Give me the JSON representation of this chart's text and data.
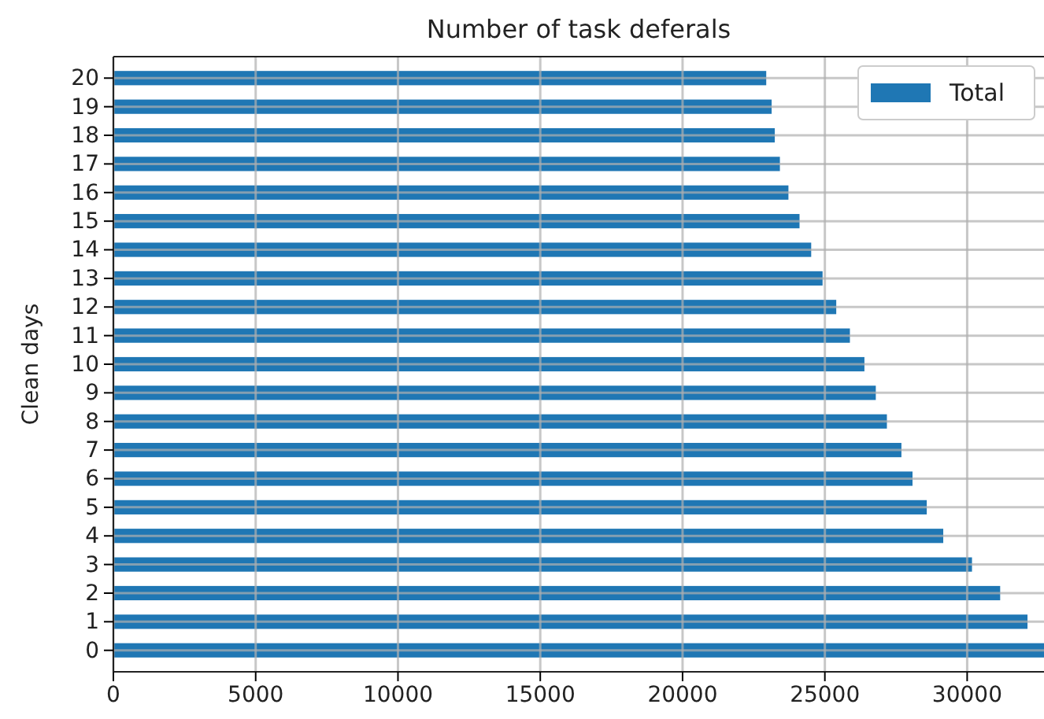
{
  "chart_data": {
    "type": "bar",
    "orientation": "horizontal",
    "title": "Number of task deferals",
    "ylabel": "Clean days",
    "categories": [
      "20",
      "19",
      "18",
      "17",
      "16",
      "15",
      "14",
      "13",
      "12",
      "11",
      "10",
      "9",
      "8",
      "7",
      "6",
      "5",
      "4",
      "3",
      "2",
      "1",
      "0"
    ],
    "series": [
      {
        "name": "Total",
        "color": "#1f77b4",
        "values": [
          22940,
          23130,
          23240,
          23420,
          23720,
          24110,
          24520,
          24920,
          25400,
          25880,
          26390,
          26790,
          27180,
          27690,
          28080,
          28580,
          29160,
          30170,
          31160,
          32120,
          32700
        ]
      }
    ],
    "xlim": [
      0,
      32700
    ],
    "xticks": [
      0,
      5000,
      10000,
      15000,
      20000,
      25000,
      30000
    ],
    "grid": true,
    "legend": "top right"
  }
}
